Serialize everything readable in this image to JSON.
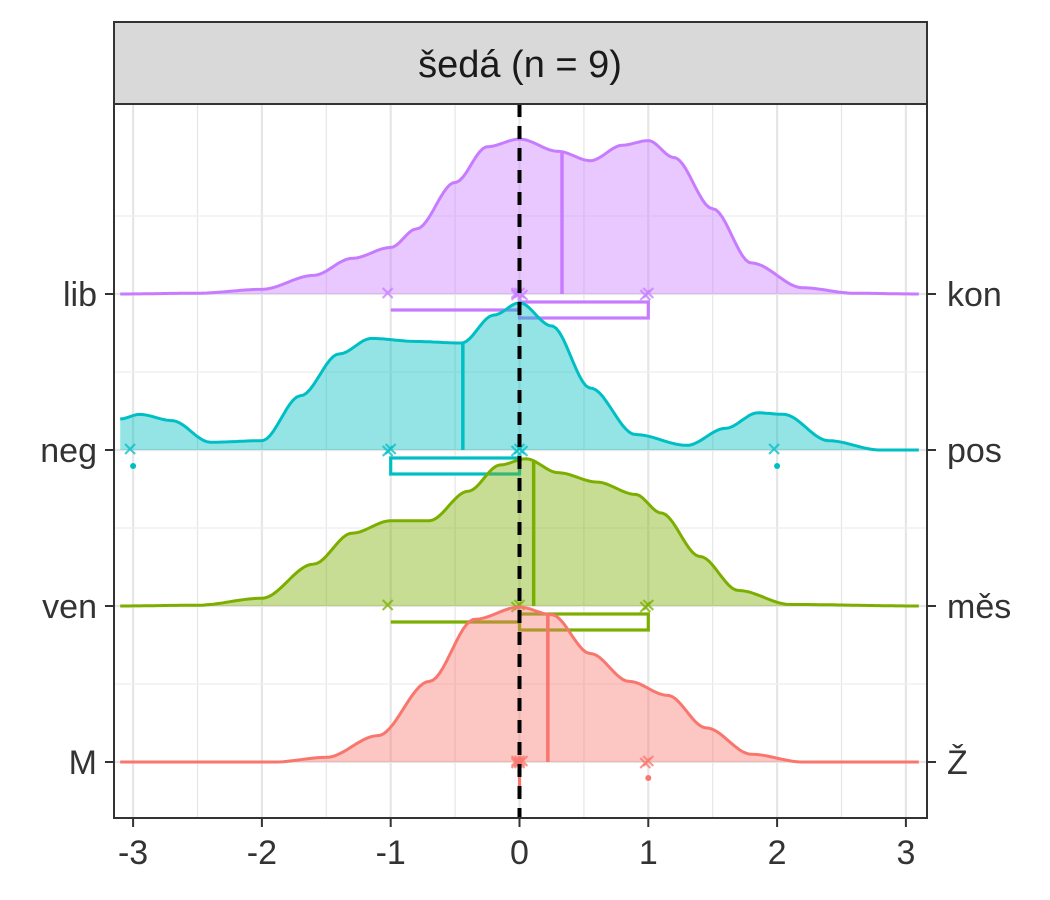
{
  "chart_data": {
    "type": "ridgeline-density",
    "facet_title": "šedá (n = 9)",
    "xlim": [
      -3.1,
      3.1
    ],
    "x_ticks": [
      "-3",
      "-2",
      "-1",
      "0",
      "1",
      "2",
      "3"
    ],
    "x_tick_values": [
      -3,
      -2,
      -1,
      0,
      1,
      2,
      3
    ],
    "reference_line_x": 0,
    "grid": true,
    "rows": [
      {
        "left_label": "lib",
        "right_label": "kon",
        "color": "#C77CFF",
        "mean": 0.33,
        "density": [
          [
            -3.1,
            0.0
          ],
          [
            -2.5,
            0.005
          ],
          [
            -2.0,
            0.03
          ],
          [
            -1.6,
            0.12
          ],
          [
            -1.3,
            0.23
          ],
          [
            -1.0,
            0.3
          ],
          [
            -0.8,
            0.42
          ],
          [
            -0.5,
            0.72
          ],
          [
            -0.25,
            0.95
          ],
          [
            0.0,
            1.0
          ],
          [
            0.3,
            0.92
          ],
          [
            0.55,
            0.86
          ],
          [
            0.8,
            0.96
          ],
          [
            1.0,
            0.99
          ],
          [
            1.2,
            0.88
          ],
          [
            1.5,
            0.55
          ],
          [
            1.8,
            0.2
          ],
          [
            2.2,
            0.04
          ],
          [
            2.6,
            0.005
          ],
          [
            3.1,
            0.0
          ]
        ],
        "points": [
          -1,
          0,
          0,
          0,
          0,
          1,
          1
        ],
        "box": {
          "min": -1,
          "q1": 0,
          "median": 0,
          "q3": 1,
          "max": 1
        }
      },
      {
        "left_label": "neg",
        "right_label": "pos",
        "color": "#00BFC4",
        "mean": -0.44,
        "density": [
          [
            -3.1,
            0.2
          ],
          [
            -2.95,
            0.23
          ],
          [
            -2.7,
            0.19
          ],
          [
            -2.4,
            0.05
          ],
          [
            -2.0,
            0.06
          ],
          [
            -1.7,
            0.35
          ],
          [
            -1.4,
            0.62
          ],
          [
            -1.15,
            0.72
          ],
          [
            -0.8,
            0.7
          ],
          [
            -0.45,
            0.69
          ],
          [
            -0.2,
            0.87
          ],
          [
            0.0,
            0.95
          ],
          [
            0.25,
            0.8
          ],
          [
            0.55,
            0.4
          ],
          [
            0.9,
            0.1
          ],
          [
            1.3,
            0.03
          ],
          [
            1.6,
            0.14
          ],
          [
            1.85,
            0.24
          ],
          [
            2.05,
            0.23
          ],
          [
            2.4,
            0.06
          ],
          [
            2.8,
            0.0
          ],
          [
            3.1,
            0.0
          ]
        ],
        "points": [
          -3,
          -1,
          -1,
          0,
          0,
          0,
          2
        ],
        "outliers": [
          -3,
          2
        ],
        "box": {
          "min": -1,
          "q1": -1,
          "median": 0,
          "q3": 0,
          "max": 0
        }
      },
      {
        "left_label": "ven",
        "right_label": "měs",
        "color": "#7CAE00",
        "mean": 0.11,
        "density": [
          [
            -3.1,
            0.0
          ],
          [
            -2.5,
            0.005
          ],
          [
            -2.0,
            0.05
          ],
          [
            -1.6,
            0.27
          ],
          [
            -1.3,
            0.47
          ],
          [
            -1.0,
            0.55
          ],
          [
            -0.7,
            0.55
          ],
          [
            -0.4,
            0.74
          ],
          [
            -0.15,
            0.91
          ],
          [
            0.05,
            0.95
          ],
          [
            0.3,
            0.86
          ],
          [
            0.6,
            0.8
          ],
          [
            0.9,
            0.72
          ],
          [
            1.1,
            0.6
          ],
          [
            1.4,
            0.32
          ],
          [
            1.7,
            0.1
          ],
          [
            2.1,
            0.01
          ],
          [
            3.1,
            0.0
          ]
        ],
        "points": [
          -1,
          0,
          0,
          1,
          1
        ],
        "box": {
          "min": -1,
          "q1": 0,
          "median": 0,
          "q3": 1,
          "max": 1
        }
      },
      {
        "left_label": "M",
        "right_label": "Ž",
        "color": "#F8766D",
        "mean": 0.22,
        "density": [
          [
            -3.1,
            0.0
          ],
          [
            -1.9,
            0.0
          ],
          [
            -1.5,
            0.03
          ],
          [
            -1.1,
            0.17
          ],
          [
            -0.7,
            0.52
          ],
          [
            -0.35,
            0.92
          ],
          [
            0.0,
            1.0
          ],
          [
            0.25,
            0.95
          ],
          [
            0.55,
            0.7
          ],
          [
            0.85,
            0.52
          ],
          [
            1.15,
            0.43
          ],
          [
            1.45,
            0.22
          ],
          [
            1.8,
            0.05
          ],
          [
            2.2,
            0.0
          ],
          [
            3.1,
            0.0
          ]
        ],
        "points": [
          0,
          0,
          0,
          0,
          0,
          1,
          1
        ],
        "outliers": [
          1
        ],
        "box": {
          "min": 0,
          "q1": 0,
          "median": 0,
          "q3": 0,
          "max": 0
        }
      }
    ]
  }
}
